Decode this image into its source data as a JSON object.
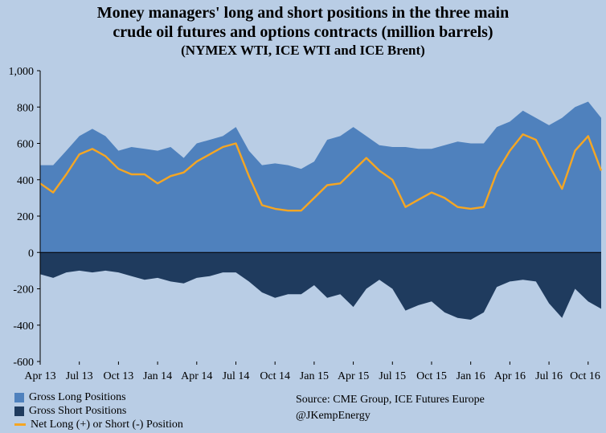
{
  "colors": {
    "background": "#b9cde5",
    "long_fill": "#4f81bd",
    "short_fill": "#1f3b5e",
    "net_line": "#f5a623"
  },
  "title": {
    "line1": "Money managers' long and short positions in the three main",
    "line2": "crude oil futures and options contracts (million barrels)",
    "line3": "(NYMEX WTI, ICE WTI and ICE Brent)"
  },
  "legend": {
    "long": "Gross Long Positions",
    "short": "Gross Short Positions",
    "net": "Net Long (+) or Short (-) Position"
  },
  "source": {
    "line1": "Source:  CME Group, ICE Futures Europe",
    "line2": "@JKempEnergy"
  },
  "chart_data": {
    "type": "area",
    "title": "Money managers' long and short positions in the three main crude oil futures and options contracts (million barrels)",
    "subtitle": "(NYMEX WTI, ICE WTI and ICE Brent)",
    "xlabel": "",
    "ylabel": "",
    "ylim": [
      -600,
      1000
    ],
    "yticks": [
      -600,
      -400,
      -200,
      0,
      200,
      400,
      600,
      800,
      1000
    ],
    "ytick_labels": [
      "-600",
      "-400",
      "-200",
      "0",
      "200",
      "400",
      "600",
      "800",
      "1,000"
    ],
    "xtick_labels": [
      "Apr 13",
      "Jul 13",
      "Oct 13",
      "Jan 14",
      "Apr 14",
      "Jul 14",
      "Oct 14",
      "Jan 15",
      "Apr 15",
      "Jul 15",
      "Oct 15",
      "Jan 16",
      "Apr 16",
      "Jul 16",
      "Oct 16"
    ],
    "grid": false,
    "x": [
      "Apr 13",
      "May 13",
      "Jun 13",
      "Jul 13",
      "Aug 13",
      "Sep 13",
      "Oct 13",
      "Nov 13",
      "Dec 13",
      "Jan 14",
      "Feb 14",
      "Mar 14",
      "Apr 14",
      "May 14",
      "Jun 14",
      "Jul 14",
      "Aug 14",
      "Sep 14",
      "Oct 14",
      "Nov 14",
      "Dec 14",
      "Jan 15",
      "Feb 15",
      "Mar 15",
      "Apr 15",
      "May 15",
      "Jun 15",
      "Jul 15",
      "Aug 15",
      "Sep 15",
      "Oct 15",
      "Nov 15",
      "Dec 15",
      "Jan 16",
      "Feb 16",
      "Mar 16",
      "Apr 16",
      "May 16",
      "Jun 16",
      "Jul 16",
      "Aug 16",
      "Sep 16",
      "Oct 16",
      "Nov 16"
    ],
    "series": [
      {
        "name": "Gross Long Positions",
        "values": [
          480,
          480,
          560,
          640,
          680,
          640,
          560,
          580,
          570,
          560,
          580,
          520,
          600,
          620,
          640,
          690,
          560,
          480,
          490,
          480,
          460,
          500,
          620,
          640,
          690,
          640,
          590,
          580,
          580,
          570,
          570,
          590,
          610,
          600,
          600,
          690,
          720,
          780,
          740,
          700,
          740,
          800,
          830,
          740
        ]
      },
      {
        "name": "Gross Short Positions",
        "values": [
          -120,
          -140,
          -110,
          -100,
          -110,
          -100,
          -110,
          -130,
          -150,
          -140,
          -160,
          -170,
          -140,
          -130,
          -110,
          -110,
          -160,
          -220,
          -250,
          -230,
          -230,
          -180,
          -250,
          -230,
          -300,
          -200,
          -150,
          -200,
          -320,
          -290,
          -270,
          -330,
          -360,
          -370,
          -330,
          -190,
          -160,
          -150,
          -160,
          -280,
          -360,
          -200,
          -270,
          -310
        ]
      },
      {
        "name": "Net Long (+) or Short (-) Position",
        "values": [
          380,
          330,
          430,
          540,
          570,
          530,
          460,
          430,
          430,
          380,
          420,
          440,
          500,
          540,
          580,
          600,
          420,
          260,
          240,
          230,
          230,
          300,
          370,
          380,
          450,
          520,
          450,
          400,
          250,
          290,
          330,
          300,
          250,
          240,
          250,
          440,
          560,
          650,
          620,
          480,
          350,
          560,
          640,
          450
        ]
      }
    ]
  }
}
